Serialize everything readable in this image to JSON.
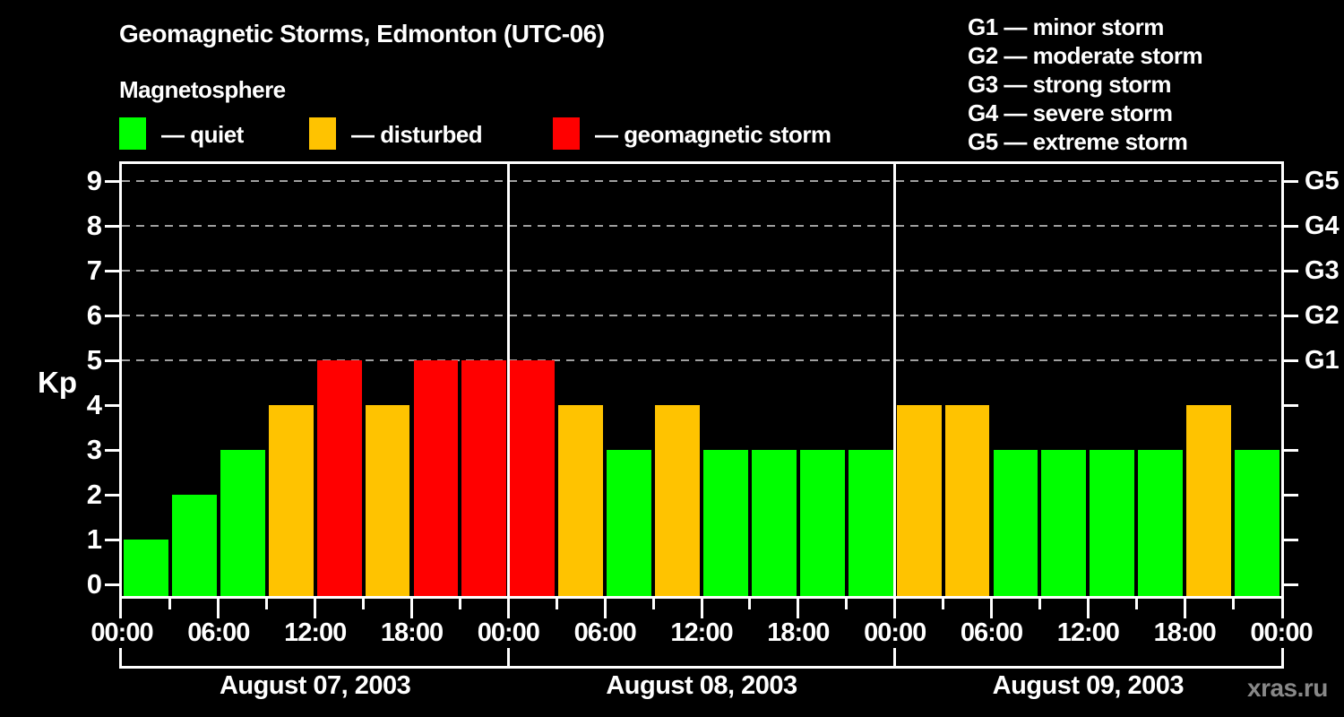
{
  "header": {
    "title": "Geomagnetic Storms, Edmonton (UTC-06)",
    "subtitle": "Magnetosphere"
  },
  "legend": {
    "items": [
      {
        "key": "quiet",
        "label": "— quiet",
        "color": "#00ff00"
      },
      {
        "key": "disturbed",
        "label": "— disturbed",
        "color": "#ffc300"
      },
      {
        "key": "storm",
        "label": "— geomagnetic storm",
        "color": "#ff0000"
      }
    ]
  },
  "g_scale_legend": {
    "items": [
      {
        "label": "G1 — minor storm"
      },
      {
        "label": "G2 — moderate storm"
      },
      {
        "label": "G3 — strong storm"
      },
      {
        "label": "G4 — severe storm"
      },
      {
        "label": "G5 — extreme storm"
      }
    ]
  },
  "chart_data": {
    "type": "bar",
    "title": "Geomagnetic Storms, Edmonton (UTC-06)",
    "ylabel": "Kp",
    "ylim": [
      0,
      9
    ],
    "y_ticks": [
      0,
      1,
      2,
      3,
      4,
      5,
      6,
      7,
      8,
      9
    ],
    "grid": "dashed horizontal at Kp 5-9 only",
    "gridlines": [
      {
        "kp": 5,
        "g": "G1"
      },
      {
        "kp": 6,
        "g": "G2"
      },
      {
        "kp": 7,
        "g": "G3"
      },
      {
        "kp": 8,
        "g": "G4"
      },
      {
        "kp": 9,
        "g": "G5"
      }
    ],
    "hours_per_bar": 3,
    "bars_per_day": 8,
    "x_tick_labels": [
      "00:00",
      "06:00",
      "12:00",
      "18:00",
      "00:00",
      "06:00",
      "12:00",
      "18:00",
      "00:00",
      "06:00",
      "12:00",
      "18:00",
      "00:00"
    ],
    "days": [
      {
        "date": "August 07, 2003",
        "kp": [
          1,
          2,
          3,
          4,
          5,
          4,
          5,
          5
        ],
        "status": [
          "quiet",
          "quiet",
          "quiet",
          "disturbed",
          "storm",
          "disturbed",
          "storm",
          "storm"
        ]
      },
      {
        "date": "August 08, 2003",
        "kp": [
          5,
          4,
          3,
          4,
          3,
          3,
          3,
          3
        ],
        "status": [
          "storm",
          "disturbed",
          "quiet",
          "disturbed",
          "quiet",
          "quiet",
          "quiet",
          "quiet"
        ]
      },
      {
        "date": "August 09, 2003",
        "kp": [
          4,
          4,
          3,
          3,
          3,
          3,
          4,
          3
        ],
        "status": [
          "disturbed",
          "disturbed",
          "quiet",
          "quiet",
          "quiet",
          "quiet",
          "disturbed",
          "quiet"
        ]
      }
    ],
    "legend_position": "top"
  },
  "watermark": "xras.ru",
  "colors": {
    "quiet": "#00ff00",
    "disturbed": "#ffc300",
    "storm": "#ff0000",
    "axis": "#ffffff",
    "grid": "#a0a0a0",
    "background": "#000000",
    "watermark": "#888888"
  }
}
